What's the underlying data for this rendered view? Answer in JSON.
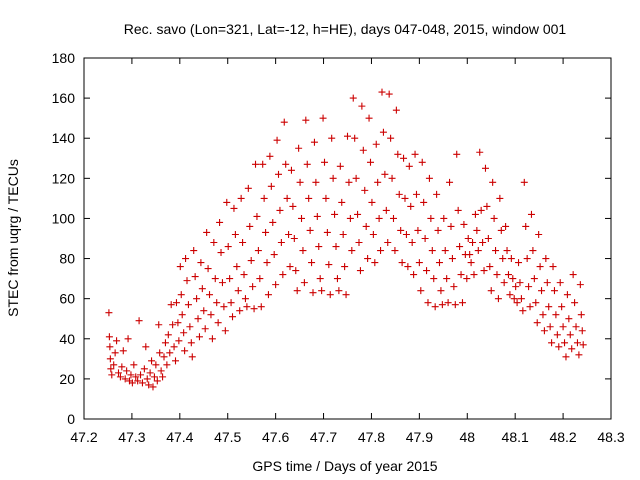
{
  "chart_data": {
    "type": "scatter",
    "title": "Rec. savo (Lon=321, Lat=-12, h=HE), days 047-048, 2015, window 001",
    "xlabel": "GPS time / Days of year 2015",
    "ylabel": "STEC from uqrg / TECUs",
    "xlim": [
      47.2,
      48.3
    ],
    "ylim": [
      0,
      180
    ],
    "xticks": [
      "47.2",
      "47.3",
      "47.4",
      "47.5",
      "47.6",
      "47.7",
      "47.8",
      "47.9",
      "48",
      "48.1",
      "48.2",
      "48.3"
    ],
    "yticks": [
      "0",
      "20",
      "40",
      "60",
      "80",
      "100",
      "120",
      "140",
      "160",
      "180"
    ],
    "grid": false,
    "marker": "+",
    "marker_color": "#cc0000",
    "points": [
      [
        47.252,
        53
      ],
      [
        47.253,
        41
      ],
      [
        47.254,
        36
      ],
      [
        47.255,
        30
      ],
      [
        47.256,
        25
      ],
      [
        47.258,
        22
      ],
      [
        47.262,
        27
      ],
      [
        47.265,
        33
      ],
      [
        47.268,
        39
      ],
      [
        47.272,
        23
      ],
      [
        47.276,
        21
      ],
      [
        47.279,
        26
      ],
      [
        47.282,
        34
      ],
      [
        47.286,
        20
      ],
      [
        47.289,
        24
      ],
      [
        47.292,
        40
      ],
      [
        47.295,
        19
      ],
      [
        47.298,
        22
      ],
      [
        47.301,
        18
      ],
      [
        47.304,
        27
      ],
      [
        47.308,
        21
      ],
      [
        47.312,
        19
      ],
      [
        47.315,
        49
      ],
      [
        47.318,
        22
      ],
      [
        47.322,
        18
      ],
      [
        47.326,
        25
      ],
      [
        47.329,
        36
      ],
      [
        47.332,
        20
      ],
      [
        47.335,
        17
      ],
      [
        47.338,
        23
      ],
      [
        47.341,
        29
      ],
      [
        47.344,
        16
      ],
      [
        47.347,
        21
      ],
      [
        47.35,
        27
      ],
      [
        47.353,
        19
      ],
      [
        47.356,
        47
      ],
      [
        47.358,
        33
      ],
      [
        47.361,
        24
      ],
      [
        47.364,
        21
      ],
      [
        47.367,
        31
      ],
      [
        47.37,
        38
      ],
      [
        47.373,
        27
      ],
      [
        47.376,
        42
      ],
      [
        47.379,
        33
      ],
      [
        47.382,
        57
      ],
      [
        47.385,
        47
      ],
      [
        47.388,
        36
      ],
      [
        47.391,
        29
      ],
      [
        47.393,
        58
      ],
      [
        47.396,
        48
      ],
      [
        47.398,
        39
      ],
      [
        47.401,
        76
      ],
      [
        47.403,
        62
      ],
      [
        47.405,
        52
      ],
      [
        47.408,
        43
      ],
      [
        47.41,
        34
      ],
      [
        47.412,
        80
      ],
      [
        47.415,
        69
      ],
      [
        47.418,
        57
      ],
      [
        47.421,
        46
      ],
      [
        47.424,
        38
      ],
      [
        47.426,
        31
      ],
      [
        47.429,
        84
      ],
      [
        47.432,
        71
      ],
      [
        47.435,
        60
      ],
      [
        47.438,
        50
      ],
      [
        47.441,
        41
      ],
      [
        47.444,
        78
      ],
      [
        47.447,
        65
      ],
      [
        47.45,
        54
      ],
      [
        47.453,
        45
      ],
      [
        47.456,
        93
      ],
      [
        47.459,
        75
      ],
      [
        47.462,
        62
      ],
      [
        47.465,
        52
      ],
      [
        47.468,
        40
      ],
      [
        47.471,
        88
      ],
      [
        47.474,
        70
      ],
      [
        47.477,
        58
      ],
      [
        47.48,
        48
      ],
      [
        47.483,
        98
      ],
      [
        47.486,
        83
      ],
      [
        47.489,
        68
      ],
      [
        47.492,
        56
      ],
      [
        47.495,
        44
      ],
      [
        47.498,
        108
      ],
      [
        47.501,
        86
      ],
      [
        47.504,
        70
      ],
      [
        47.507,
        58
      ],
      [
        47.51,
        51
      ],
      [
        47.513,
        105
      ],
      [
        47.516,
        92
      ],
      [
        47.519,
        76
      ],
      [
        47.522,
        64
      ],
      [
        47.525,
        54
      ],
      [
        47.528,
        110
      ],
      [
        47.531,
        88
      ],
      [
        47.534,
        72
      ],
      [
        47.537,
        60
      ],
      [
        47.54,
        56
      ],
      [
        47.543,
        115
      ],
      [
        47.546,
        96
      ],
      [
        47.549,
        79
      ],
      [
        47.552,
        66
      ],
      [
        47.555,
        55
      ],
      [
        47.558,
        127
      ],
      [
        47.561,
        101
      ],
      [
        47.564,
        84
      ],
      [
        47.567,
        70
      ],
      [
        47.57,
        56
      ],
      [
        47.573,
        127
      ],
      [
        47.576,
        110
      ],
      [
        47.579,
        93
      ],
      [
        47.582,
        78
      ],
      [
        47.585,
        62
      ],
      [
        47.588,
        131
      ],
      [
        47.591,
        116
      ],
      [
        47.594,
        98
      ],
      [
        47.597,
        82
      ],
      [
        47.6,
        67
      ],
      [
        47.603,
        139
      ],
      [
        47.606,
        122
      ],
      [
        47.609,
        104
      ],
      [
        47.612,
        88
      ],
      [
        47.615,
        72
      ],
      [
        47.618,
        148
      ],
      [
        47.621,
        127
      ],
      [
        47.624,
        110
      ],
      [
        47.627,
        92
      ],
      [
        47.63,
        76
      ],
      [
        47.633,
        124
      ],
      [
        47.636,
        106
      ],
      [
        47.639,
        90
      ],
      [
        47.642,
        74
      ],
      [
        47.645,
        64
      ],
      [
        47.648,
        135
      ],
      [
        47.651,
        118
      ],
      [
        47.654,
        100
      ],
      [
        47.657,
        84
      ],
      [
        47.66,
        68
      ],
      [
        47.663,
        149
      ],
      [
        47.666,
        127
      ],
      [
        47.669,
        110
      ],
      [
        47.672,
        94
      ],
      [
        47.675,
        78
      ],
      [
        47.678,
        63
      ],
      [
        47.681,
        138
      ],
      [
        47.684,
        118
      ],
      [
        47.687,
        101
      ],
      [
        47.69,
        86
      ],
      [
        47.693,
        70
      ],
      [
        47.696,
        64
      ],
      [
        47.699,
        150
      ],
      [
        47.702,
        128
      ],
      [
        47.705,
        110
      ],
      [
        47.708,
        93
      ],
      [
        47.711,
        77
      ],
      [
        47.714,
        62
      ],
      [
        47.717,
        140
      ],
      [
        47.72,
        120
      ],
      [
        47.723,
        102
      ],
      [
        47.726,
        86
      ],
      [
        47.729,
        70
      ],
      [
        47.732,
        64
      ],
      [
        47.735,
        126
      ],
      [
        47.738,
        108
      ],
      [
        47.741,
        92
      ],
      [
        47.744,
        76
      ],
      [
        47.747,
        62
      ],
      [
        47.75,
        141
      ],
      [
        47.753,
        118
      ],
      [
        47.756,
        100
      ],
      [
        47.759,
        84
      ],
      [
        47.762,
        160
      ],
      [
        47.765,
        140
      ],
      [
        47.768,
        120
      ],
      [
        47.771,
        102
      ],
      [
        47.774,
        88
      ],
      [
        47.777,
        74
      ],
      [
        47.78,
        156
      ],
      [
        47.783,
        134
      ],
      [
        47.786,
        114
      ],
      [
        47.789,
        96
      ],
      [
        47.792,
        80
      ],
      [
        47.795,
        150
      ],
      [
        47.798,
        128
      ],
      [
        47.801,
        108
      ],
      [
        47.804,
        92
      ],
      [
        47.807,
        78
      ],
      [
        47.81,
        137
      ],
      [
        47.813,
        118
      ],
      [
        47.816,
        100
      ],
      [
        47.819,
        84
      ],
      [
        47.822,
        163
      ],
      [
        47.825,
        143
      ],
      [
        47.828,
        122
      ],
      [
        47.831,
        104
      ],
      [
        47.834,
        88
      ],
      [
        47.837,
        162
      ],
      [
        47.84,
        140
      ],
      [
        47.843,
        120
      ],
      [
        47.846,
        100
      ],
      [
        47.849,
        84
      ],
      [
        47.852,
        154
      ],
      [
        47.855,
        132
      ],
      [
        47.858,
        112
      ],
      [
        47.861,
        94
      ],
      [
        47.864,
        78
      ],
      [
        47.867,
        130
      ],
      [
        47.87,
        110
      ],
      [
        47.873,
        92
      ],
      [
        47.876,
        76
      ],
      [
        47.879,
        126
      ],
      [
        47.882,
        106
      ],
      [
        47.885,
        88
      ],
      [
        47.888,
        72
      ],
      [
        47.891,
        132
      ],
      [
        47.894,
        112
      ],
      [
        47.897,
        94
      ],
      [
        47.9,
        78
      ],
      [
        47.903,
        64
      ],
      [
        47.906,
        128
      ],
      [
        47.909,
        108
      ],
      [
        47.912,
        90
      ],
      [
        47.915,
        74
      ],
      [
        47.918,
        58
      ],
      [
        47.921,
        120
      ],
      [
        47.924,
        100
      ],
      [
        47.927,
        84
      ],
      [
        47.93,
        70
      ],
      [
        47.933,
        56
      ],
      [
        47.936,
        112
      ],
      [
        47.939,
        94
      ],
      [
        47.942,
        78
      ],
      [
        47.945,
        64
      ],
      [
        47.948,
        57
      ],
      [
        47.951,
        100
      ],
      [
        47.954,
        84
      ],
      [
        47.957,
        70
      ],
      [
        47.96,
        58
      ],
      [
        47.963,
        118
      ],
      [
        47.966,
        96
      ],
      [
        47.969,
        80
      ],
      [
        47.972,
        66
      ],
      [
        47.975,
        57
      ],
      [
        47.978,
        132
      ],
      [
        47.981,
        104
      ],
      [
        47.984,
        86
      ],
      [
        47.987,
        72
      ],
      [
        47.99,
        58
      ],
      [
        47.993,
        97
      ],
      [
        47.996,
        82
      ],
      [
        47.999,
        70
      ],
      [
        48.002,
        90
      ],
      [
        48.005,
        82
      ],
      [
        48.008,
        78
      ],
      [
        48.011,
        88
      ],
      [
        48.014,
        72
      ],
      [
        48.017,
        102
      ],
      [
        48.02,
        94
      ],
      [
        48.023,
        84
      ],
      [
        48.026,
        133
      ],
      [
        48.029,
        104
      ],
      [
        48.032,
        88
      ],
      [
        48.035,
        74
      ],
      [
        48.038,
        125
      ],
      [
        48.041,
        106
      ],
      [
        48.044,
        90
      ],
      [
        48.047,
        76
      ],
      [
        48.05,
        64
      ],
      [
        48.053,
        118
      ],
      [
        48.056,
        100
      ],
      [
        48.059,
        84
      ],
      [
        48.062,
        72
      ],
      [
        48.065,
        60
      ],
      [
        48.068,
        110
      ],
      [
        48.071,
        94
      ],
      [
        48.074,
        80
      ],
      [
        48.077,
        68
      ],
      [
        48.08,
        96
      ],
      [
        48.083,
        84
      ],
      [
        48.086,
        72
      ],
      [
        48.089,
        62
      ],
      [
        48.092,
        80
      ],
      [
        48.095,
        70
      ],
      [
        48.098,
        60
      ],
      [
        48.101,
        66
      ],
      [
        48.104,
        58
      ],
      [
        48.107,
        78
      ],
      [
        48.11,
        68
      ],
      [
        48.113,
        60
      ],
      [
        48.116,
        54
      ],
      [
        48.119,
        118
      ],
      [
        48.122,
        96
      ],
      [
        48.125,
        80
      ],
      [
        48.128,
        66
      ],
      [
        48.131,
        56
      ],
      [
        48.134,
        102
      ],
      [
        48.137,
        84
      ],
      [
        48.14,
        70
      ],
      [
        48.143,
        58
      ],
      [
        48.146,
        48
      ],
      [
        48.149,
        92
      ],
      [
        48.152,
        76
      ],
      [
        48.155,
        64
      ],
      [
        48.158,
        52
      ],
      [
        48.161,
        44
      ],
      [
        48.164,
        80
      ],
      [
        48.167,
        68
      ],
      [
        48.17,
        56
      ],
      [
        48.173,
        46
      ],
      [
        48.176,
        38
      ],
      [
        48.179,
        76
      ],
      [
        48.182,
        64
      ],
      [
        48.185,
        52
      ],
      [
        48.188,
        42
      ],
      [
        48.191,
        36
      ],
      [
        48.194,
        68
      ],
      [
        48.197,
        56
      ],
      [
        48.2,
        46
      ],
      [
        48.203,
        38
      ],
      [
        48.206,
        31
      ],
      [
        48.209,
        62
      ],
      [
        48.212,
        50
      ],
      [
        48.215,
        42
      ],
      [
        48.218,
        35
      ],
      [
        48.221,
        72
      ],
      [
        48.224,
        58
      ],
      [
        48.227,
        46
      ],
      [
        48.23,
        38
      ],
      [
        48.233,
        32
      ],
      [
        48.236,
        67
      ],
      [
        48.238,
        52
      ],
      [
        48.24,
        44
      ],
      [
        48.242,
        37
      ]
    ]
  }
}
